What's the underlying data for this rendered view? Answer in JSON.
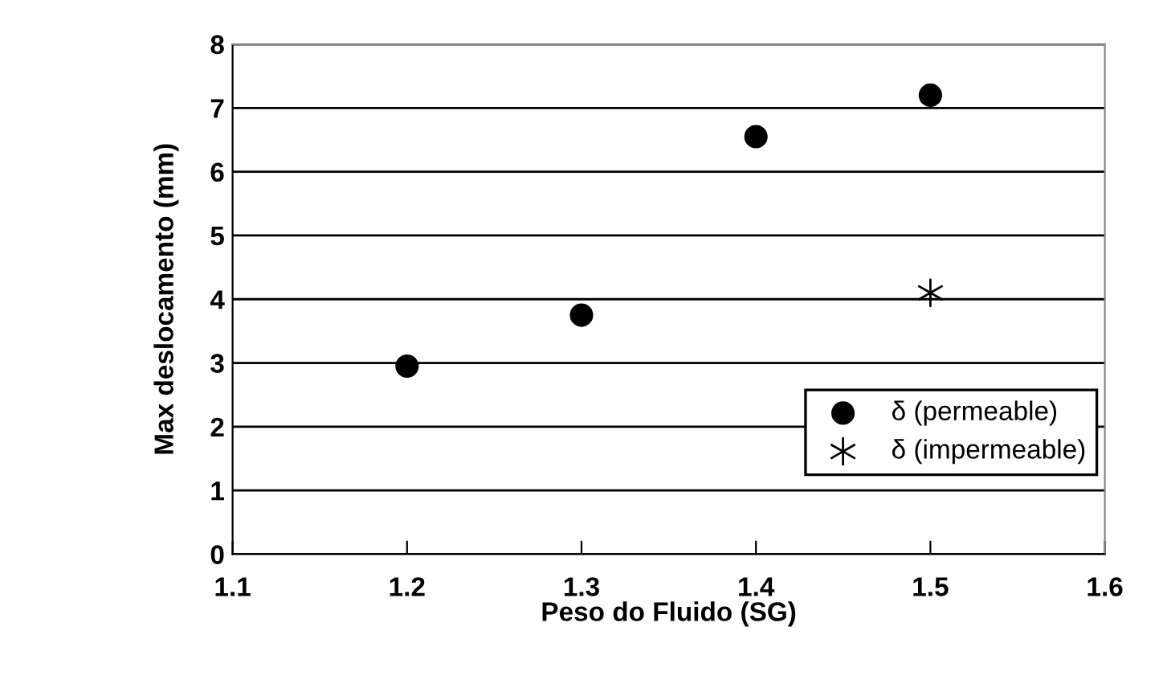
{
  "chart_data": {
    "type": "scatter",
    "xlabel": "Peso do Fluido (SG)",
    "ylabel": "Max deslocamento (mm)",
    "x": [
      1.2,
      1.3,
      1.4,
      1.5
    ],
    "series": [
      {
        "name": "δ (permeable)",
        "color": "#000000",
        "marker": "circle",
        "values": [
          2.95,
          3.75,
          6.55,
          7.2
        ]
      },
      {
        "name": "δ (impermeable)",
        "color": "#000000",
        "marker": "cross",
        "x": [
          1.5
        ],
        "values": [
          4.1
        ]
      }
    ],
    "xlim": [
      1.1,
      1.6
    ],
    "xticks": [
      1.1,
      1.2,
      1.3,
      1.4,
      1.5,
      1.6
    ],
    "ylim": [
      0,
      8
    ],
    "yticks": [
      0,
      1,
      2,
      3,
      4,
      5,
      6,
      7,
      8
    ],
    "grid": "y",
    "legend": "lower right"
  }
}
